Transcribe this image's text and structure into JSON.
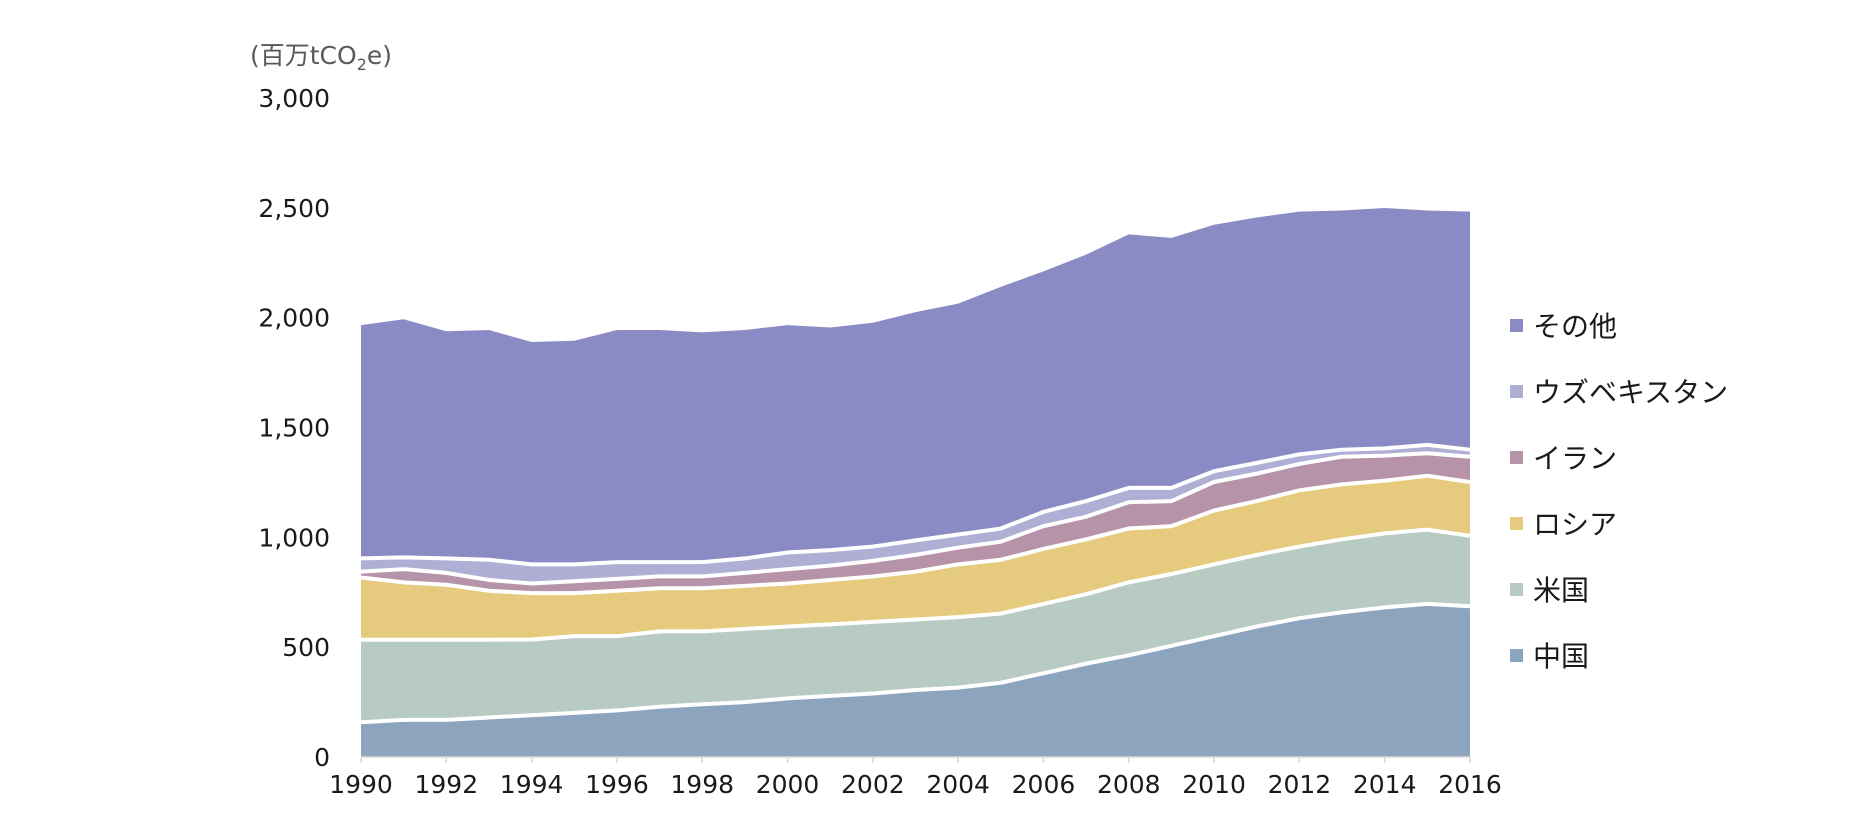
{
  "chart_data": {
    "type": "area",
    "stacked": true,
    "title": "",
    "ylabel_prefix": "(百万tCO",
    "ylabel_sub": "2",
    "ylabel_suffix": "e)",
    "xlabel": "",
    "ylim": [
      0,
      3000
    ],
    "yticks": [
      0,
      500,
      1000,
      1500,
      2000,
      2500,
      3000
    ],
    "ytick_labels": [
      "0",
      "500",
      "1,000",
      "1,500",
      "2,000",
      "2,500",
      "3,000"
    ],
    "x": [
      1990,
      1991,
      1992,
      1993,
      1994,
      1995,
      1996,
      1997,
      1998,
      1999,
      2000,
      2001,
      2002,
      2003,
      2004,
      2005,
      2006,
      2007,
      2008,
      2009,
      2010,
      2011,
      2012,
      2013,
      2014,
      2015,
      2016
    ],
    "xtick_labels": [
      "1990",
      "1992",
      "1994",
      "1996",
      "1998",
      "2000",
      "2002",
      "2004",
      "2006",
      "2008",
      "2010",
      "2012",
      "2014",
      "2016"
    ],
    "legend_position": "right",
    "series": [
      {
        "name": "中国",
        "color": "#8DA4BE",
        "values": [
          158,
          169,
          169,
          180,
          190,
          201,
          212,
          229,
          240,
          250,
          267,
          278,
          289,
          305,
          316,
          338,
          381,
          425,
          463,
          506,
          550,
          594,
          632,
          659,
          681,
          697,
          686
        ]
      },
      {
        "name": "米国",
        "color": "#B8CBC2",
        "values": [
          376,
          365,
          365,
          354,
          345,
          349,
          338,
          343,
          332,
          333,
          327,
          326,
          326,
          321,
          321,
          315,
          316,
          316,
          332,
          327,
          327,
          326,
          326,
          332,
          337,
          338,
          321
        ]
      },
      {
        "name": "ロシア",
        "color": "#E6CB7E",
        "values": [
          283,
          261,
          250,
          223,
          211,
          196,
          207,
          196,
          196,
          196,
          196,
          202,
          207,
          218,
          240,
          245,
          250,
          250,
          245,
          218,
          245,
          245,
          256,
          250,
          240,
          245,
          245
        ]
      },
      {
        "name": "イラン",
        "color": "#B693A8",
        "values": [
          27,
          60,
          54,
          49,
          44,
          54,
          54,
          54,
          54,
          59,
          65,
          65,
          71,
          76,
          76,
          82,
          104,
          103,
          120,
          114,
          130,
          125,
          120,
          126,
          114,
          103,
          115
        ]
      },
      {
        "name": "ウズベキスタン",
        "color": "#AFAFD6",
        "values": [
          60,
          54,
          66,
          92,
          87,
          77,
          76,
          65,
          65,
          66,
          76,
          71,
          65,
          66,
          60,
          60,
          65,
          71,
          65,
          60,
          49,
          49,
          44,
          32,
          33,
          38,
          32
        ]
      },
      {
        "name": "その他",
        "color": "#8A8BC4",
        "values": [
          1062,
          1084,
          1034,
          1046,
          1012,
          1018,
          1057,
          1057,
          1046,
          1040,
          1035,
          1013,
          1019,
          1039,
          1051,
          1100,
          1095,
          1122,
          1154,
          1138,
          1122,
          1117,
          1105,
          1089,
          1094,
          1067,
          1084
        ]
      }
    ]
  }
}
